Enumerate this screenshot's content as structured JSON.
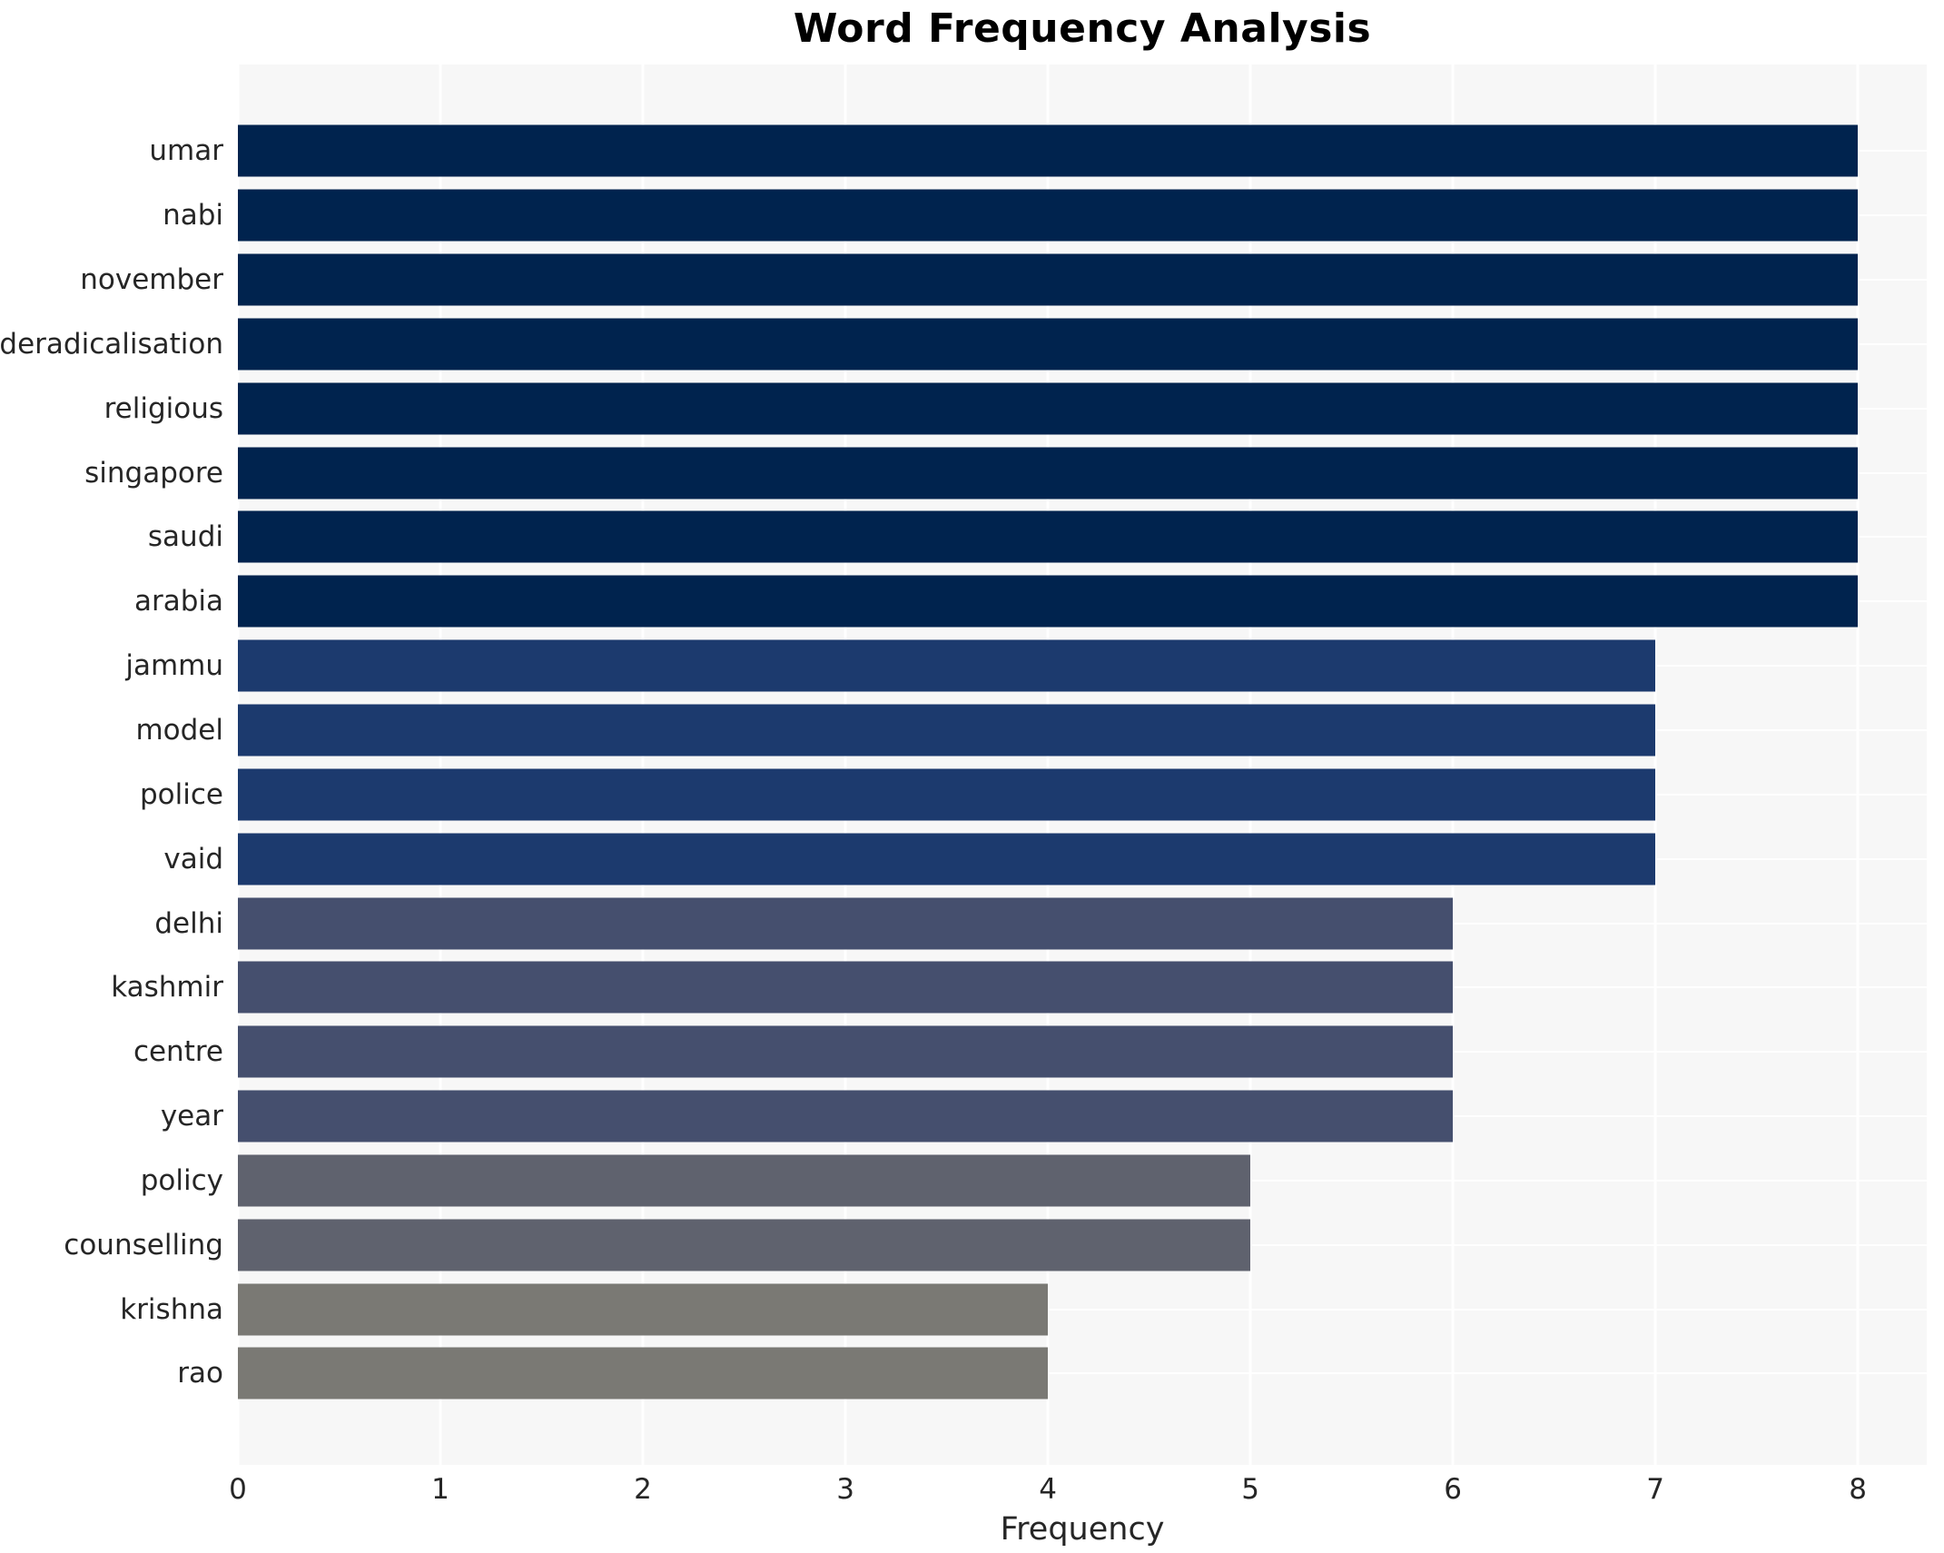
{
  "chart_data": {
    "type": "bar",
    "orientation": "horizontal",
    "title": "Word Frequency Analysis",
    "xlabel": "Frequency",
    "ylabel": "",
    "categories": [
      "umar",
      "nabi",
      "november",
      "deradicalisation",
      "religious",
      "singapore",
      "saudi",
      "arabia",
      "jammu",
      "model",
      "police",
      "vaid",
      "delhi",
      "kashmir",
      "centre",
      "year",
      "policy",
      "counselling",
      "krishna",
      "rao"
    ],
    "values": [
      8,
      8,
      8,
      8,
      8,
      8,
      8,
      8,
      7,
      7,
      7,
      7,
      6,
      6,
      6,
      6,
      5,
      5,
      4,
      4
    ],
    "bar_colors": [
      "#00234e",
      "#00234e",
      "#00234e",
      "#00234e",
      "#00234e",
      "#00234e",
      "#00234e",
      "#00234e",
      "#1c3a6e",
      "#1c3a6e",
      "#1c3a6e",
      "#1c3a6e",
      "#454f6e",
      "#454f6e",
      "#454f6e",
      "#454f6e",
      "#5f626e",
      "#5f626e",
      "#7a7974",
      "#7a7974"
    ],
    "x_ticks": [
      0,
      1,
      2,
      3,
      4,
      5,
      6,
      7,
      8
    ],
    "xlim": [
      0,
      8
    ],
    "x_display_max": 8.34,
    "grid": "on",
    "grid_color": "#ffffff",
    "plot_background": "#f7f7f7",
    "legend_position": "none"
  }
}
